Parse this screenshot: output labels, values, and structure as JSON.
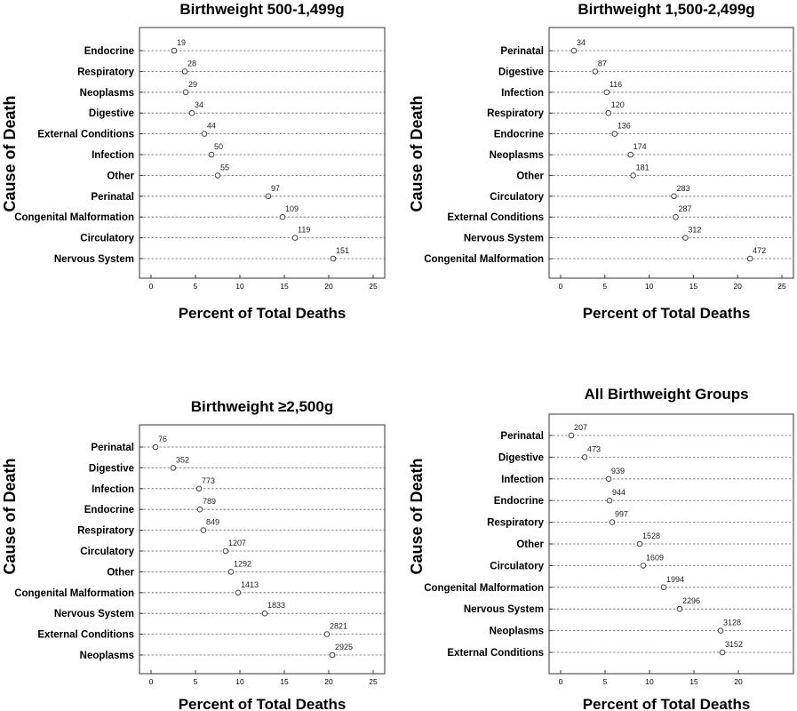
{
  "chart_data": [
    {
      "type": "scatter",
      "title": "Birthweight 500-1,499g",
      "xlabel": "Percent of Total Deaths",
      "ylabel": "Cause of Death",
      "xlim": [
        0,
        25
      ],
      "xticks": [
        0,
        5,
        10,
        15,
        20,
        25
      ],
      "grid": "dashed horizontal guide line per category",
      "categories": [
        "Endocrine",
        "Respiratory",
        "Neoplasms",
        "Digestive",
        "External Conditions",
        "Infection",
        "Other",
        "Perinatal",
        "Congenital Malformation",
        "Circulatory",
        "Nervous System"
      ],
      "values": [
        2.6,
        3.8,
        3.9,
        4.6,
        6.0,
        6.8,
        7.5,
        13.2,
        14.8,
        16.2,
        20.5
      ],
      "labels": [
        "19",
        "28",
        "29",
        "34",
        "44",
        "50",
        "55",
        "97",
        "109",
        "119",
        "151"
      ]
    },
    {
      "type": "scatter",
      "title": "Birthweight 1,500-2,499g",
      "xlabel": "Percent of Total Deaths",
      "ylabel": "Cause of Death",
      "xlim": [
        0,
        25
      ],
      "xticks": [
        0,
        5,
        10,
        15,
        20,
        25
      ],
      "grid": "dashed horizontal guide line per category",
      "categories": [
        "Perinatal",
        "Digestive",
        "Infection",
        "Respiratory",
        "Endocrine",
        "Neoplasms",
        "Other",
        "Circulatory",
        "External Conditions",
        "Nervous System",
        "Congenital Malformation"
      ],
      "values": [
        1.5,
        3.9,
        5.2,
        5.4,
        6.1,
        7.9,
        8.2,
        12.8,
        13.0,
        14.1,
        21.4
      ],
      "labels": [
        "34",
        "87",
        "116",
        "120",
        "136",
        "174",
        "181",
        "283",
        "287",
        "312",
        "472"
      ]
    },
    {
      "type": "scatter",
      "title": "Birthweight ≥2,500g",
      "xlabel": "Percent of Total Deaths",
      "ylabel": "Cause of Death",
      "xlim": [
        0,
        25
      ],
      "xticks": [
        0,
        5,
        10,
        15,
        20,
        25
      ],
      "grid": "dashed horizontal guide line per category",
      "categories": [
        "Perinatal",
        "Digestive",
        "Infection",
        "Endocrine",
        "Respiratory",
        "Circulatory",
        "Other",
        "Congenital Malformation",
        "Nervous System",
        "External Conditions",
        "Neoplasms"
      ],
      "values": [
        0.5,
        2.5,
        5.4,
        5.5,
        5.9,
        8.4,
        9.0,
        9.8,
        12.8,
        19.8,
        20.4
      ],
      "labels": [
        "76",
        "352",
        "773",
        "789",
        "849",
        "1207",
        "1292",
        "1413",
        "1833",
        "2821",
        "2925"
      ]
    },
    {
      "type": "scatter",
      "title": "All Birthweight Groups",
      "xlabel": "Percent of Total Deaths",
      "ylabel": "Cause of Death",
      "xlim": [
        0,
        20
      ],
      "xticks": [
        0,
        5,
        10,
        15,
        20
      ],
      "grid": "dashed horizontal guide line per category",
      "categories": [
        "Perinatal",
        "Digestive",
        "Infection",
        "Endocrine",
        "Respiratory",
        "Other",
        "Circulatory",
        "Congenital Malformation",
        "Nervous System",
        "Neoplasms",
        "External Conditions"
      ],
      "values": [
        1.2,
        2.7,
        5.4,
        5.5,
        5.8,
        8.9,
        9.3,
        11.6,
        13.4,
        18.0,
        18.2
      ],
      "labels": [
        "207",
        "473",
        "939",
        "944",
        "997",
        "1528",
        "1609",
        "1994",
        "2296",
        "3128",
        "3152"
      ]
    }
  ]
}
